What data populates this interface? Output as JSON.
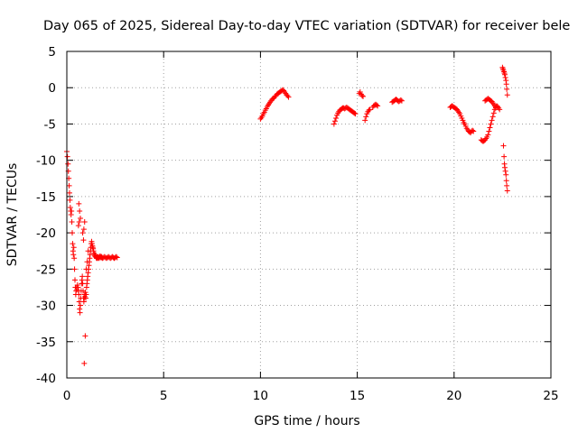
{
  "chart_data": {
    "type": "scatter",
    "title": "Day 065 of 2025, Sidereal Day-to-day VTEC variation (SDTVAR) for receiver bele",
    "xlabel": "GPS time / hours",
    "ylabel": "SDTVAR / TECUs",
    "xlim": [
      0,
      25
    ],
    "ylim": [
      -40,
      5
    ],
    "x_ticks": [
      0,
      5,
      10,
      15,
      20,
      25
    ],
    "y_ticks": [
      5,
      0,
      -5,
      -10,
      -15,
      -20,
      -25,
      -30,
      -35,
      -40
    ],
    "x_tick_labels": [
      "0",
      "5",
      "10",
      "15",
      "20",
      "25"
    ],
    "y_tick_labels": [
      "5",
      "0",
      "-5",
      "-10",
      "-15",
      "-20",
      "-25",
      "-30",
      "-35",
      "-40"
    ],
    "grid": true,
    "marker": "+",
    "color": "#ff0000",
    "series": [
      {
        "name": "SDTVAR",
        "x": [
          0.0,
          0.03,
          0.06,
          0.08,
          0.1,
          0.12,
          0.14,
          0.16,
          0.18,
          0.2,
          0.22,
          0.24,
          0.26,
          0.28,
          0.3,
          0.32,
          0.34,
          0.36,
          0.38,
          0.4,
          0.42,
          0.44,
          0.46,
          0.48,
          0.5,
          0.52,
          0.55,
          0.58,
          0.6,
          0.62,
          0.64,
          0.66,
          0.68,
          0.7,
          0.72,
          0.74,
          0.76,
          0.78,
          0.8,
          0.82,
          0.84,
          0.86,
          0.88,
          0.9,
          0.92,
          0.94,
          0.96,
          0.98,
          1.0,
          1.02,
          1.04,
          1.06,
          1.08,
          1.1,
          1.12,
          1.14,
          1.16,
          1.18,
          1.2,
          1.22,
          1.24,
          1.26,
          1.28,
          1.3,
          1.32,
          1.34,
          1.36,
          1.38,
          1.4,
          1.42,
          1.44,
          1.46,
          1.48,
          1.5,
          1.52,
          1.54,
          1.56,
          1.58,
          1.6,
          1.62,
          1.64,
          1.66,
          1.68,
          1.7,
          1.72,
          1.74,
          1.76,
          1.78,
          1.8,
          1.82,
          1.85,
          1.9,
          1.95,
          2.0,
          2.05,
          2.1,
          2.15,
          2.2,
          2.25,
          2.3,
          2.35,
          2.4,
          2.45,
          2.5,
          2.55,
          2.6,
          0.62,
          0.66,
          0.7,
          0.6,
          0.64,
          0.95,
          0.9,
          1.0,
          1.05,
          1.1,
          0.82,
          0.88,
          0.92,
          0.86,
          10.0,
          10.05,
          10.1,
          10.15,
          10.2,
          10.25,
          10.3,
          10.35,
          10.4,
          10.45,
          10.5,
          10.55,
          10.6,
          10.65,
          10.7,
          10.75,
          10.8,
          10.85,
          10.9,
          10.95,
          11.0,
          11.05,
          11.1,
          11.15,
          11.2,
          11.25,
          11.3,
          11.35,
          11.4,
          11.45,
          13.8,
          13.85,
          13.9,
          13.95,
          14.0,
          14.05,
          14.1,
          14.15,
          14.2,
          14.25,
          14.3,
          14.35,
          14.4,
          14.45,
          14.5,
          14.55,
          14.6,
          14.65,
          14.7,
          14.75,
          14.8,
          14.85,
          14.9,
          15.1,
          15.15,
          15.2,
          15.25,
          15.3,
          15.4,
          15.45,
          15.5,
          15.55,
          15.6,
          15.65,
          15.8,
          15.85,
          15.9,
          15.95,
          16.0,
          16.05,
          16.8,
          16.85,
          16.9,
          16.95,
          17.0,
          17.05,
          17.1,
          17.15,
          17.2,
          17.25,
          17.3,
          19.8,
          19.85,
          19.9,
          19.95,
          20.0,
          20.05,
          20.1,
          20.15,
          20.2,
          20.25,
          20.3,
          20.35,
          20.4,
          20.45,
          20.5,
          20.55,
          20.6,
          20.65,
          20.7,
          20.75,
          20.8,
          20.85,
          20.9,
          20.95,
          21.0,
          21.4,
          21.45,
          21.5,
          21.55,
          21.6,
          21.65,
          21.7,
          21.75,
          21.8,
          21.85,
          21.9,
          21.95,
          22.0,
          22.05,
          22.1,
          22.15,
          22.2,
          22.25,
          22.3,
          22.35,
          21.6,
          21.65,
          21.7,
          21.75,
          21.8,
          21.85,
          21.9,
          21.95,
          22.0,
          22.05,
          22.1,
          22.15,
          22.5,
          22.52,
          22.55,
          22.58,
          22.6,
          22.62,
          22.65,
          22.68,
          22.7,
          22.72,
          22.75,
          22.55,
          22.58,
          22.6,
          22.62,
          22.65,
          22.68,
          22.7,
          22.72,
          22.75
        ],
        "y": [
          -8.8,
          -9.5,
          -10.5,
          -11.5,
          -12.5,
          -13.5,
          -14.5,
          -15.5,
          -16.5,
          -17.0,
          -17.5,
          -17.0,
          -18.5,
          -20.0,
          -21.5,
          -22.5,
          -23.0,
          -22.0,
          -23.5,
          -25.0,
          -26.5,
          -27.5,
          -28.5,
          -28.0,
          -27.5,
          -27.8,
          -27.2,
          -27.5,
          -28.0,
          -28.5,
          -29.5,
          -30.5,
          -31.0,
          -30.0,
          -29.0,
          -28.0,
          -27.0,
          -26.5,
          -26.0,
          -27.0,
          -28.0,
          -29.0,
          -29.5,
          -29.0,
          -28.5,
          -28.8,
          -28.2,
          -29.0,
          -28.5,
          -27.5,
          -27.0,
          -26.5,
          -26.0,
          -25.5,
          -25.0,
          -24.5,
          -24.0,
          -23.5,
          -23.0,
          -22.5,
          -22.0,
          -21.5,
          -21.2,
          -21.5,
          -21.8,
          -22.0,
          -22.2,
          -22.5,
          -22.8,
          -23.0,
          -23.2,
          -23.0,
          -23.2,
          -23.3,
          -23.4,
          -23.5,
          -23.4,
          -23.5,
          -23.4,
          -23.3,
          -23.4,
          -23.5,
          -23.4,
          -23.3,
          -23.2,
          -23.3,
          -23.4,
          -23.4,
          -23.3,
          -23.4,
          -23.5,
          -23.4,
          -23.3,
          -23.4,
          -23.5,
          -23.4,
          -23.3,
          -23.4,
          -23.5,
          -23.4,
          -23.3,
          -23.4,
          -23.5,
          -23.4,
          -23.3,
          -23.4,
          -16.0,
          -17.0,
          -18.0,
          -19.0,
          -18.5,
          -34.2,
          -38.0,
          -25.0,
          -24.0,
          -22.5,
          -20.0,
          -19.5,
          -18.5,
          -21.0,
          -4.3,
          -4.1,
          -3.9,
          -3.6,
          -3.4,
          -3.1,
          -2.9,
          -2.6,
          -2.4,
          -2.2,
          -2.0,
          -1.8,
          -1.6,
          -1.5,
          -1.4,
          -1.2,
          -1.1,
          -0.9,
          -0.8,
          -0.7,
          -0.6,
          -0.5,
          -0.4,
          -0.3,
          -0.4,
          -0.6,
          -0.8,
          -1.0,
          -1.1,
          -1.3,
          -5.0,
          -4.6,
          -4.2,
          -3.8,
          -3.5,
          -3.3,
          -3.1,
          -3.0,
          -2.9,
          -2.8,
          -2.8,
          -2.9,
          -2.8,
          -2.7,
          -2.8,
          -2.9,
          -3.0,
          -3.1,
          -3.2,
          -3.3,
          -3.4,
          -3.5,
          -3.6,
          -0.8,
          -0.6,
          -0.9,
          -1.1,
          -1.2,
          -4.5,
          -4.0,
          -3.6,
          -3.3,
          -3.1,
          -3.0,
          -2.7,
          -2.5,
          -2.4,
          -2.3,
          -2.4,
          -2.5,
          -2.0,
          -1.9,
          -1.8,
          -1.7,
          -1.6,
          -1.7,
          -1.8,
          -1.9,
          -1.8,
          -1.7,
          -1.8,
          -2.7,
          -2.6,
          -2.5,
          -2.6,
          -2.7,
          -2.8,
          -2.9,
          -3.0,
          -3.2,
          -3.4,
          -3.6,
          -3.9,
          -4.2,
          -4.5,
          -4.8,
          -5.0,
          -5.3,
          -5.6,
          -5.8,
          -6.0,
          -6.1,
          -6.2,
          -6.0,
          -5.9,
          -6.0,
          -7.2,
          -7.3,
          -7.4,
          -7.3,
          -7.2,
          -7.0,
          -6.8,
          -6.5,
          -6.0,
          -5.5,
          -5.0,
          -4.5,
          -4.0,
          -3.5,
          -3.0,
          -2.7,
          -2.5,
          -2.6,
          -2.8,
          -3.0,
          -1.8,
          -1.7,
          -1.6,
          -1.5,
          -1.6,
          -1.7,
          -1.8,
          -1.9,
          -2.1,
          -2.3,
          -2.5,
          -2.8,
          2.8,
          2.6,
          2.4,
          2.2,
          2.0,
          1.8,
          1.4,
          1.0,
          0.5,
          -0.2,
          -1.0,
          -8.0,
          -9.5,
          -10.5,
          -11.0,
          -11.5,
          -12.0,
          -12.8,
          -13.5,
          -14.2
        ]
      }
    ]
  }
}
